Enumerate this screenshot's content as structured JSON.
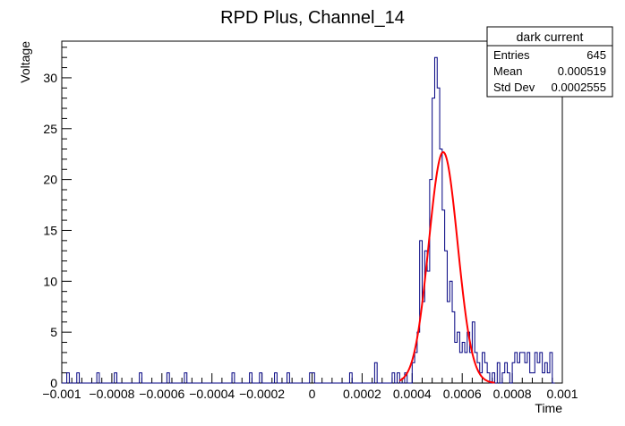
{
  "chart_data": {
    "type": "line",
    "title": "RPD Plus, Channel_14",
    "xlabel": "Time",
    "ylabel": "Voltage",
    "xlim": [
      -0.001,
      0.001
    ],
    "ylim": [
      0,
      33.6
    ],
    "x_ticks": [
      -0.001,
      -0.0008,
      -0.0006,
      -0.0004,
      -0.0002,
      0,
      0.0002,
      0.0004,
      0.0006,
      0.0008,
      0.001
    ],
    "x_tick_labels": [
      "−0.001",
      "−0.0008",
      "−0.0006",
      "−0.0004",
      "−0.0002",
      "0",
      "0.0002",
      "0.0004",
      "0.0006",
      "0.0008",
      "0.001"
    ],
    "y_ticks": [
      0,
      5,
      10,
      15,
      20,
      25,
      30
    ],
    "y_tick_labels": [
      "0",
      "5",
      "10",
      "15",
      "20",
      "25",
      "30"
    ],
    "grid": false,
    "stats_box": {
      "title": "dark current",
      "rows": [
        {
          "label": "Entries",
          "value": "645"
        },
        {
          "label": "Mean",
          "value": "0.000519"
        },
        {
          "label": "Std Dev",
          "value": "0.0002555"
        }
      ]
    },
    "series": [
      {
        "color": "#000080",
        "style": "step",
        "bin_width": 1e-05,
        "x_start": -0.001,
        "values": [
          0,
          0,
          1,
          0,
          0,
          0,
          1,
          0,
          0,
          0,
          0,
          0,
          0,
          0,
          1,
          0,
          0,
          0,
          0,
          0,
          0,
          1,
          0,
          0,
          0,
          0,
          0,
          0,
          0,
          0,
          0,
          1,
          0,
          0,
          0,
          0,
          0,
          0,
          0,
          0,
          0,
          0,
          1,
          0,
          0,
          0,
          0,
          0,
          0,
          1,
          0,
          0,
          0,
          0,
          0,
          0,
          0,
          0,
          0,
          0,
          0,
          0,
          0,
          0,
          0,
          0,
          0,
          0,
          1,
          0,
          0,
          0,
          0,
          0,
          0,
          1,
          0,
          0,
          0,
          1,
          0,
          0,
          0,
          0,
          0,
          1,
          0,
          0,
          0,
          0,
          1,
          0,
          0,
          0,
          0,
          0,
          0,
          0,
          0,
          1,
          1,
          0,
          0,
          0,
          0,
          0,
          0,
          0,
          0,
          0,
          0,
          0,
          0,
          0,
          0,
          1,
          0,
          0,
          0,
          0,
          0,
          0,
          0,
          0,
          0,
          2,
          0,
          0,
          0,
          0,
          0,
          0,
          1,
          0,
          1,
          0,
          0,
          1,
          0,
          0,
          2,
          3,
          5,
          14,
          8,
          13,
          11,
          20,
          28,
          32,
          29,
          23,
          17,
          13,
          8,
          10,
          7,
          4,
          5,
          3,
          4,
          3,
          5,
          3,
          6,
          3,
          2,
          1,
          3,
          2,
          1,
          0,
          1,
          0,
          2,
          0,
          1,
          2,
          1,
          0,
          2,
          3,
          2,
          3,
          3,
          2,
          3,
          1,
          1,
          3,
          2,
          3,
          1,
          2,
          1,
          3,
          0
        ]
      },
      {
        "color": "#ff0000",
        "style": "curve",
        "fit": "gaus",
        "amplitude": 22.7,
        "mean": 0.000524,
        "sigma": 5.75e-05,
        "range": [
          0.00035,
          0.00073
        ]
      }
    ]
  }
}
